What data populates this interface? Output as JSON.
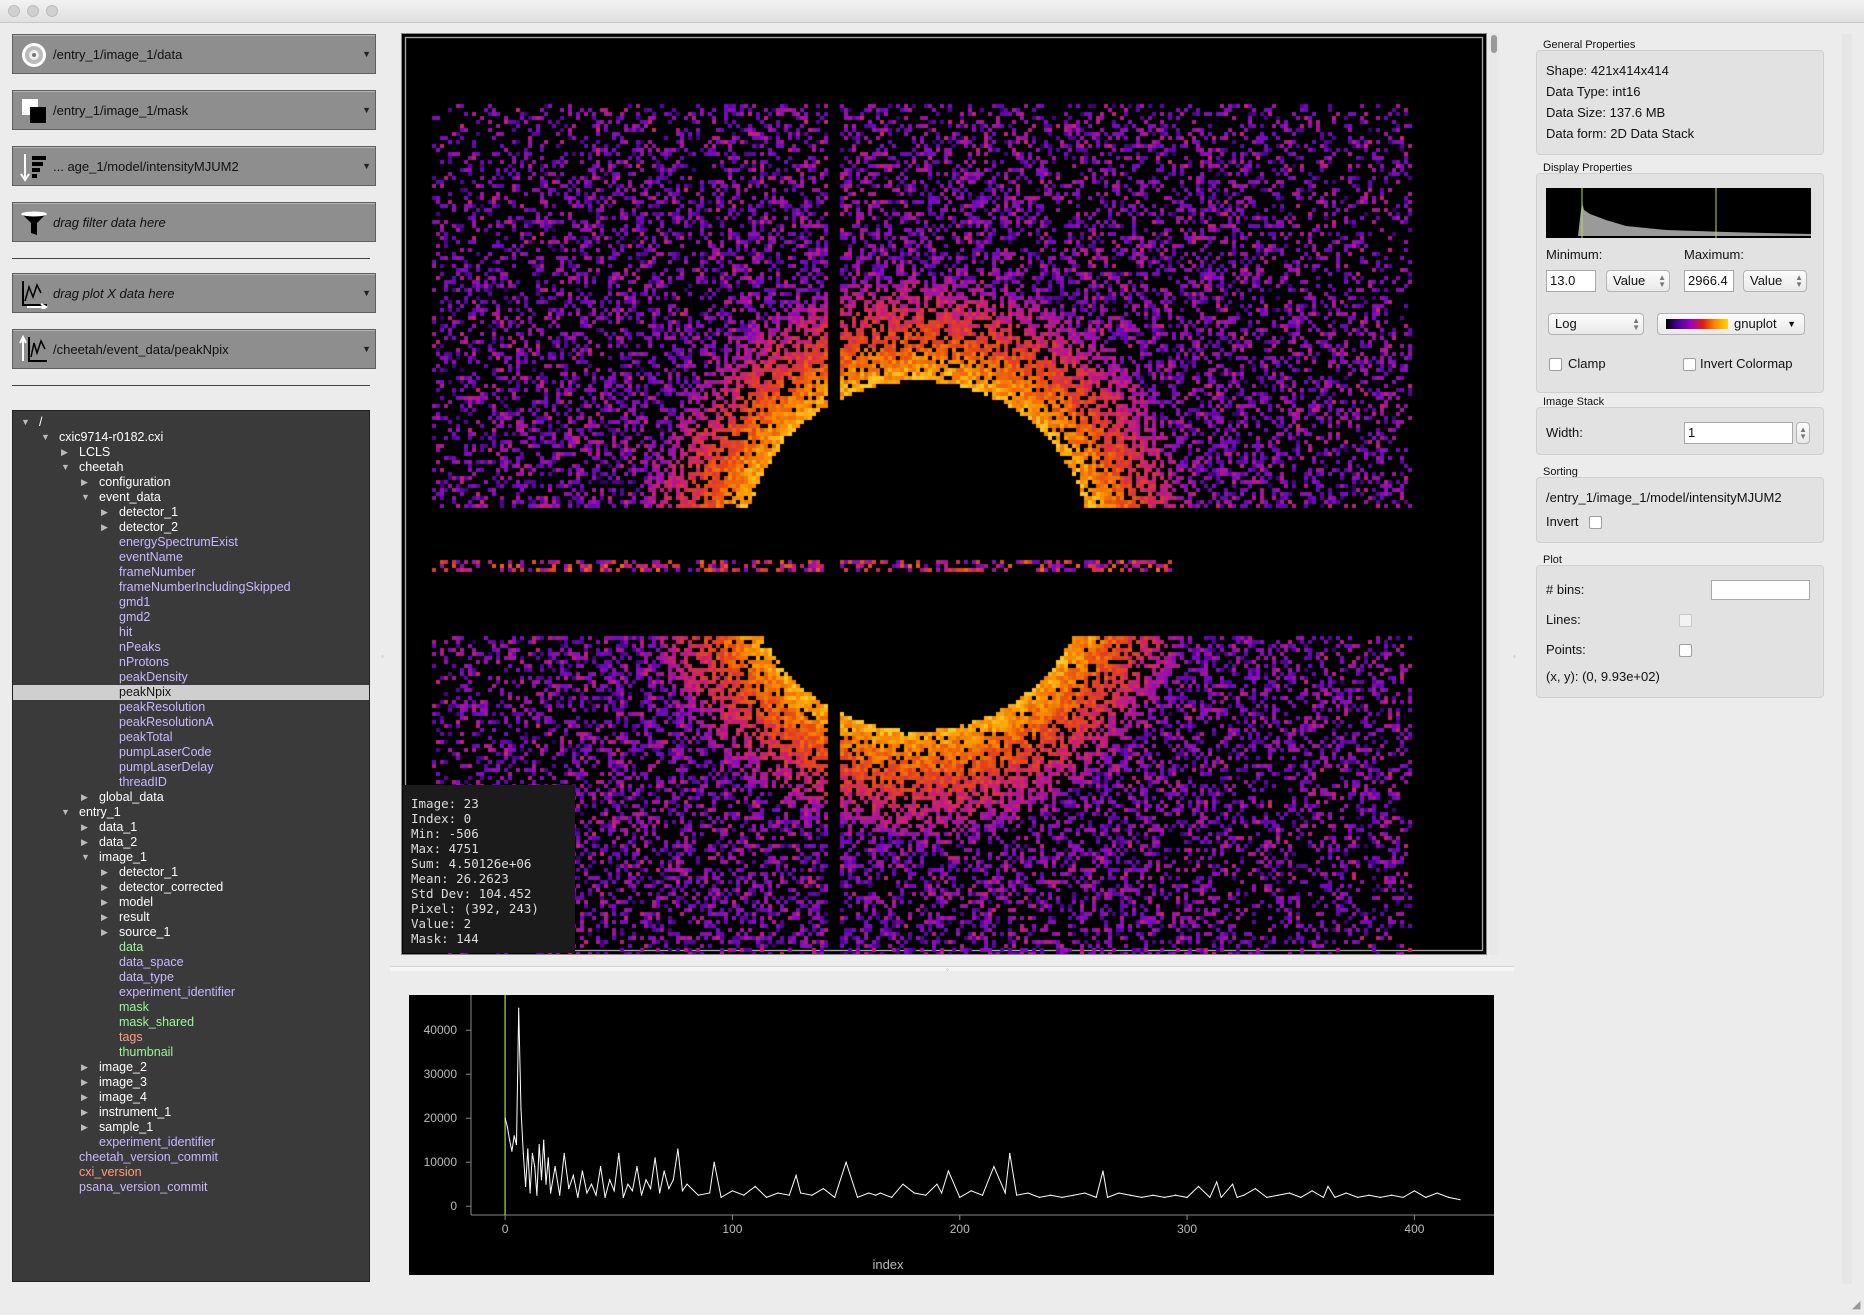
{
  "drops": [
    {
      "label": "/entry_1/image_1/data",
      "icon": "data-stack-icon",
      "italic": false
    },
    {
      "label": "/entry_1/image_1/mask",
      "icon": "mask-icon",
      "italic": false
    },
    {
      "label": "... age_1/model/intensityMJUM2",
      "icon": "sort-icon",
      "italic": false
    },
    {
      "label": "drag filter data here",
      "icon": "filter-icon",
      "italic": true
    },
    {
      "label": "drag plot X data here",
      "icon": "plot-x-icon",
      "italic": true
    },
    {
      "label": "/cheetah/event_data/peakNpix",
      "icon": "plot-y-icon",
      "italic": false
    }
  ],
  "tree": [
    {
      "l": 0,
      "n": "/",
      "t": "open",
      "c": "#ffffff"
    },
    {
      "l": 1,
      "n": "cxic9714-r0182.cxi",
      "t": "open",
      "c": "#ffffff"
    },
    {
      "l": 2,
      "n": "LCLS",
      "t": "closed",
      "c": "#ffffff"
    },
    {
      "l": 2,
      "n": "cheetah",
      "t": "open",
      "c": "#ffffff"
    },
    {
      "l": 3,
      "n": "configuration",
      "t": "closed",
      "c": "#ffffff"
    },
    {
      "l": 3,
      "n": "event_data",
      "t": "open",
      "c": "#ffffff"
    },
    {
      "l": 4,
      "n": "detector_1",
      "t": "closed",
      "c": "#ffffff"
    },
    {
      "l": 4,
      "n": "detector_2",
      "t": "closed",
      "c": "#ffffff"
    },
    {
      "l": 4,
      "n": "energySpectrumExist",
      "t": "",
      "c": "#c9b8ff"
    },
    {
      "l": 4,
      "n": "eventName",
      "t": "",
      "c": "#c9b8ff"
    },
    {
      "l": 4,
      "n": "frameNumber",
      "t": "",
      "c": "#c9b8ff"
    },
    {
      "l": 4,
      "n": "frameNumberIncludingSkipped",
      "t": "",
      "c": "#c9b8ff"
    },
    {
      "l": 4,
      "n": "gmd1",
      "t": "",
      "c": "#c9b8ff"
    },
    {
      "l": 4,
      "n": "gmd2",
      "t": "",
      "c": "#c9b8ff"
    },
    {
      "l": 4,
      "n": "hit",
      "t": "",
      "c": "#c9b8ff"
    },
    {
      "l": 4,
      "n": "nPeaks",
      "t": "",
      "c": "#c9b8ff"
    },
    {
      "l": 4,
      "n": "nProtons",
      "t": "",
      "c": "#c9b8ff"
    },
    {
      "l": 4,
      "n": "peakDensity",
      "t": "",
      "c": "#c9b8ff"
    },
    {
      "l": 4,
      "n": "peakNpix",
      "t": "",
      "c": "#111111",
      "sel": true
    },
    {
      "l": 4,
      "n": "peakResolution",
      "t": "",
      "c": "#c9b8ff"
    },
    {
      "l": 4,
      "n": "peakResolutionA",
      "t": "",
      "c": "#c9b8ff"
    },
    {
      "l": 4,
      "n": "peakTotal",
      "t": "",
      "c": "#c9b8ff"
    },
    {
      "l": 4,
      "n": "pumpLaserCode",
      "t": "",
      "c": "#c9b8ff"
    },
    {
      "l": 4,
      "n": "pumpLaserDelay",
      "t": "",
      "c": "#c9b8ff"
    },
    {
      "l": 4,
      "n": "threadID",
      "t": "",
      "c": "#c9b8ff"
    },
    {
      "l": 3,
      "n": "global_data",
      "t": "closed",
      "c": "#ffffff"
    },
    {
      "l": 2,
      "n": "entry_1",
      "t": "open",
      "c": "#ffffff"
    },
    {
      "l": 3,
      "n": "data_1",
      "t": "closed",
      "c": "#ffffff"
    },
    {
      "l": 3,
      "n": "data_2",
      "t": "closed",
      "c": "#ffffff"
    },
    {
      "l": 3,
      "n": "image_1",
      "t": "open",
      "c": "#ffffff"
    },
    {
      "l": 4,
      "n": "detector_1",
      "t": "closed",
      "c": "#ffffff"
    },
    {
      "l": 4,
      "n": "detector_corrected",
      "t": "closed",
      "c": "#ffffff"
    },
    {
      "l": 4,
      "n": "model",
      "t": "closed",
      "c": "#ffffff"
    },
    {
      "l": 4,
      "n": "result",
      "t": "closed",
      "c": "#ffffff"
    },
    {
      "l": 4,
      "n": "source_1",
      "t": "closed",
      "c": "#ffffff"
    },
    {
      "l": 4,
      "n": "data",
      "t": "",
      "c": "#9cf59c"
    },
    {
      "l": 4,
      "n": "data_space",
      "t": "",
      "c": "#c9b8ff"
    },
    {
      "l": 4,
      "n": "data_type",
      "t": "",
      "c": "#c9b8ff"
    },
    {
      "l": 4,
      "n": "experiment_identifier",
      "t": "",
      "c": "#c9b8ff"
    },
    {
      "l": 4,
      "n": "mask",
      "t": "",
      "c": "#9cf59c"
    },
    {
      "l": 4,
      "n": "mask_shared",
      "t": "",
      "c": "#9cf59c"
    },
    {
      "l": 4,
      "n": "tags",
      "t": "",
      "c": "#ff9f7f"
    },
    {
      "l": 4,
      "n": "thumbnail",
      "t": "",
      "c": "#9cf59c"
    },
    {
      "l": 3,
      "n": "image_2",
      "t": "closed",
      "c": "#ffffff"
    },
    {
      "l": 3,
      "n": "image_3",
      "t": "closed",
      "c": "#ffffff"
    },
    {
      "l": 3,
      "n": "image_4",
      "t": "closed",
      "c": "#ffffff"
    },
    {
      "l": 3,
      "n": "instrument_1",
      "t": "closed",
      "c": "#ffffff"
    },
    {
      "l": 3,
      "n": "sample_1",
      "t": "closed",
      "c": "#ffffff"
    },
    {
      "l": 3,
      "n": "experiment_identifier",
      "t": "",
      "c": "#c9b8ff"
    },
    {
      "l": 2,
      "n": "cheetah_version_commit",
      "t": "",
      "c": "#c9b8ff"
    },
    {
      "l": 2,
      "n": "cxi_version",
      "t": "",
      "c": "#ff9f7f"
    },
    {
      "l": 2,
      "n": "psana_version_commit",
      "t": "",
      "c": "#c9b8ff"
    }
  ],
  "stats": {
    "image": "Image: 23",
    "index": "Index: 0",
    "min": "Min: -506",
    "max": "Max: 4751",
    "sum": "Sum: 4.50126e+06",
    "mean": "Mean: 26.2623",
    "std": "Std Dev: 104.452",
    "pixel": "Pixel: (392, 243)",
    "value": "Value: 2",
    "mask": "Mask: 144"
  },
  "general": {
    "title": "General Properties",
    "shape": "Shape: 421x414x414",
    "dtype": "Data Type: int16",
    "dsize": "Data Size: 137.6 MB",
    "dform": "Data form: 2D Data Stack"
  },
  "display": {
    "title": "Display Properties",
    "min_label": "Minimum:",
    "max_label": "Maximum:",
    "min_value": "13.0",
    "max_value": "2966.4",
    "min_mode": "Value",
    "max_mode": "Value",
    "scale": "Log",
    "colormap": "gnuplot",
    "clamp": "Clamp",
    "invert_cmap": "Invert Colormap"
  },
  "stack": {
    "title": "Image Stack",
    "width_label": "Width:",
    "width_value": "1"
  },
  "sorting": {
    "title": "Sorting",
    "path": "/entry_1/image_1/model/intensityMJUM2",
    "invert": "Invert"
  },
  "plotprops": {
    "title": "Plot",
    "bins": "# bins:",
    "lines": "Lines:",
    "points": "Points:",
    "xy": "(x, y): (0, 9.93e+02)"
  },
  "colors": {
    "accent": "#ff8c00",
    "tree_bg": "#3a3a3a",
    "selection": "#cfcfcf"
  },
  "chart_data": {
    "type": "line",
    "xlabel": "index",
    "ylabel": "",
    "xlim": [
      -15,
      435
    ],
    "ylim": [
      -2000,
      48000
    ],
    "xticks": [
      0,
      100,
      200,
      300,
      400
    ],
    "yticks": [
      0,
      10000,
      20000,
      30000,
      40000
    ],
    "xtick_labels": [
      "0",
      "100",
      "200",
      "300",
      "400"
    ],
    "ytick_labels": [
      "0",
      "10000",
      "20000",
      "30000",
      "40000"
    ],
    "marker_x": 0,
    "x": [
      0,
      1,
      2,
      3,
      4,
      5,
      6,
      7,
      8,
      9,
      10,
      11,
      12,
      13,
      14,
      15,
      16,
      17,
      18,
      19,
      20,
      22,
      24,
      26,
      28,
      30,
      32,
      34,
      36,
      38,
      40,
      42,
      44,
      46,
      48,
      50,
      52,
      54,
      56,
      58,
      60,
      62,
      64,
      66,
      68,
      70,
      72,
      74,
      76,
      78,
      80,
      85,
      90,
      92,
      95,
      100,
      105,
      110,
      115,
      120,
      125,
      128,
      130,
      135,
      140,
      145,
      150,
      155,
      160,
      163,
      165,
      170,
      175,
      180,
      185,
      190,
      192,
      195,
      200,
      205,
      210,
      215,
      220,
      222,
      225,
      230,
      235,
      240,
      245,
      250,
      255,
      260,
      263,
      265,
      270,
      275,
      280,
      285,
      290,
      295,
      300,
      305,
      310,
      313,
      315,
      320,
      322,
      325,
      330,
      335,
      340,
      345,
      350,
      355,
      360,
      362,
      365,
      370,
      375,
      380,
      385,
      390,
      395,
      400,
      405,
      410,
      415,
      420
    ],
    "y": [
      20000,
      18000,
      15000,
      12500,
      16000,
      14000,
      45000,
      22000,
      12000,
      4500,
      13000,
      3000,
      12000,
      9000,
      2500,
      14000,
      6000,
      15000,
      5000,
      11000,
      3000,
      9000,
      2500,
      12000,
      4000,
      7000,
      2000,
      8000,
      3000,
      5000,
      2500,
      9000,
      2000,
      6000,
      3500,
      12000,
      2000,
      5000,
      3500,
      9000,
      2500,
      6000,
      4000,
      11000,
      3000,
      8000,
      4000,
      6000,
      13000,
      3500,
      5000,
      2500,
      3000,
      10000,
      2000,
      3500,
      2500,
      4500,
      2000,
      3000,
      2500,
      7000,
      3000,
      2500,
      4000,
      2000,
      10000,
      2000,
      3000,
      2500,
      3000,
      2000,
      5000,
      3000,
      2500,
      5000,
      3000,
      8000,
      2000,
      3500,
      2500,
      9000,
      3000,
      12000,
      2500,
      3000,
      2000,
      2500,
      2000,
      2500,
      3000,
      2000,
      8000,
      2000,
      3000,
      2500,
      2000,
      2500,
      2000,
      2500,
      2000,
      4500,
      2000,
      5500,
      2000,
      5000,
      2000,
      2500,
      4000,
      2000,
      2500,
      3000,
      2000,
      3500,
      2000,
      4500,
      2000,
      3000,
      2000,
      2500,
      2000,
      2500,
      2000,
      3500,
      2000,
      3000,
      2000,
      1500
    ]
  }
}
